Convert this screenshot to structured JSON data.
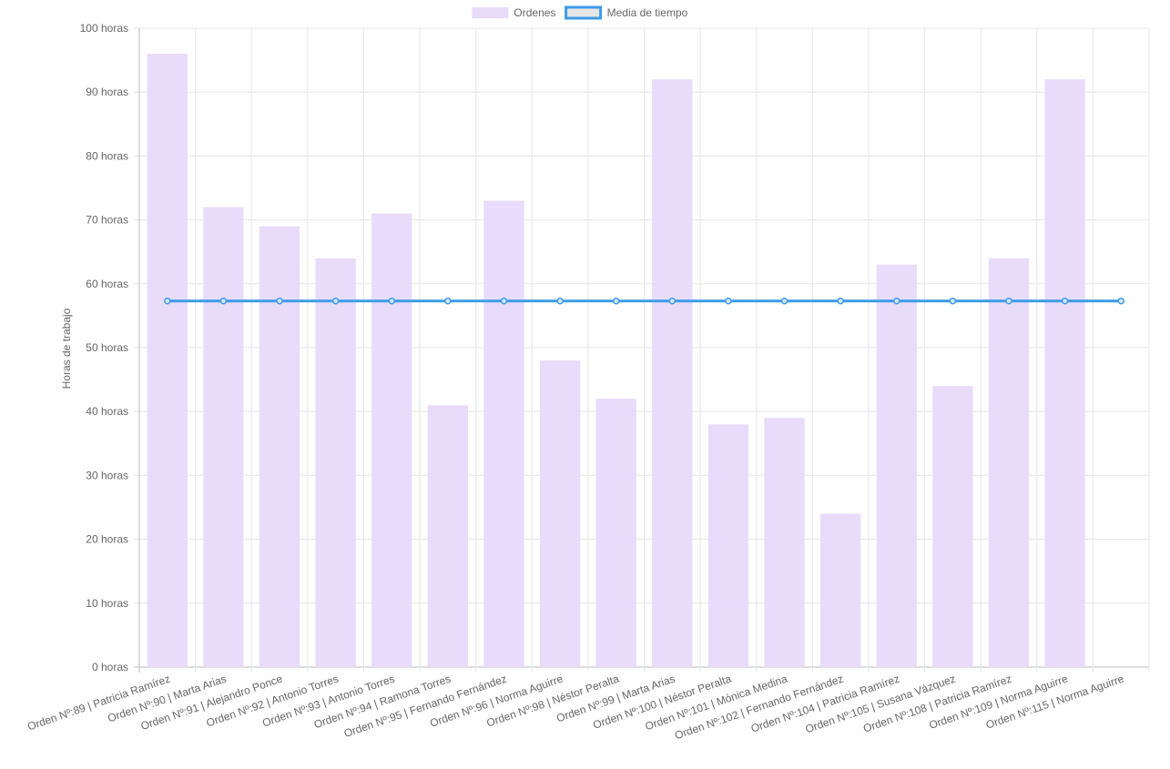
{
  "chart_data": {
    "type": "bar",
    "legend": {
      "position": "top-center",
      "items": [
        {
          "label": "Ordenes",
          "kind": "box",
          "fill": "#e9dcfa",
          "stroke": "#e9dcfa"
        },
        {
          "label": "Media de tiempo",
          "kind": "box",
          "fill": "#e6e6e6",
          "stroke": "#3d9be9"
        }
      ]
    },
    "ylabel": "Horas de trabajo",
    "xlabel": "",
    "ylim": [
      0,
      100
    ],
    "y_ticks": [
      "0 horas",
      "10 horas",
      "20 horas",
      "30 horas",
      "40 horas",
      "50 horas",
      "60 horas",
      "70 horas",
      "80 horas",
      "90 horas",
      "100 horas"
    ],
    "y_tick_values": [
      0,
      10,
      20,
      30,
      40,
      50,
      60,
      70,
      80,
      90,
      100
    ],
    "grid": true,
    "categories": [
      "Orden Nº:89 | Patricia Ramírez",
      "Orden Nº:90 | Marta Arias",
      "Orden Nº:91 | Alejandro Ponce",
      "Orden Nº:92 | Antonio Torres",
      "Orden Nº:93 | Antonio Torres",
      "Orden Nº:94 | Ramona Torres",
      "Orden Nº:95 | Fernando Fernández",
      "Orden Nº:96 | Norma Aguirre",
      "Orden Nº:98 | Néstor Peralta",
      "Orden Nº:99 | Marta Arias",
      "Orden Nº:100 | Néstor Peralta",
      "Orden Nº:101 | Mónica Medina",
      "Orden Nº:102 | Fernando Fernández",
      "Orden Nº:104 | Patricia Ramírez",
      "Orden Nº:105 | Susana Vázquez",
      "Orden Nº:108 | Patricia Ramírez",
      "Orden Nº:109 | Norma Aguirre",
      "Orden Nº:115 | Norma Aguirre"
    ],
    "series": [
      {
        "name": "Ordenes",
        "type": "bar",
        "color": "#e9dcfa",
        "values": [
          96,
          72,
          69,
          64,
          71,
          41,
          73,
          48,
          42,
          92,
          38,
          39,
          24,
          63,
          44,
          64,
          92,
          0
        ]
      },
      {
        "name": "Media de tiempo",
        "type": "line",
        "color": "#3d9be9",
        "values": [
          57.3,
          57.3,
          57.3,
          57.3,
          57.3,
          57.3,
          57.3,
          57.3,
          57.3,
          57.3,
          57.3,
          57.3,
          57.3,
          57.3,
          57.3,
          57.3,
          57.3,
          57.3
        ]
      }
    ]
  }
}
